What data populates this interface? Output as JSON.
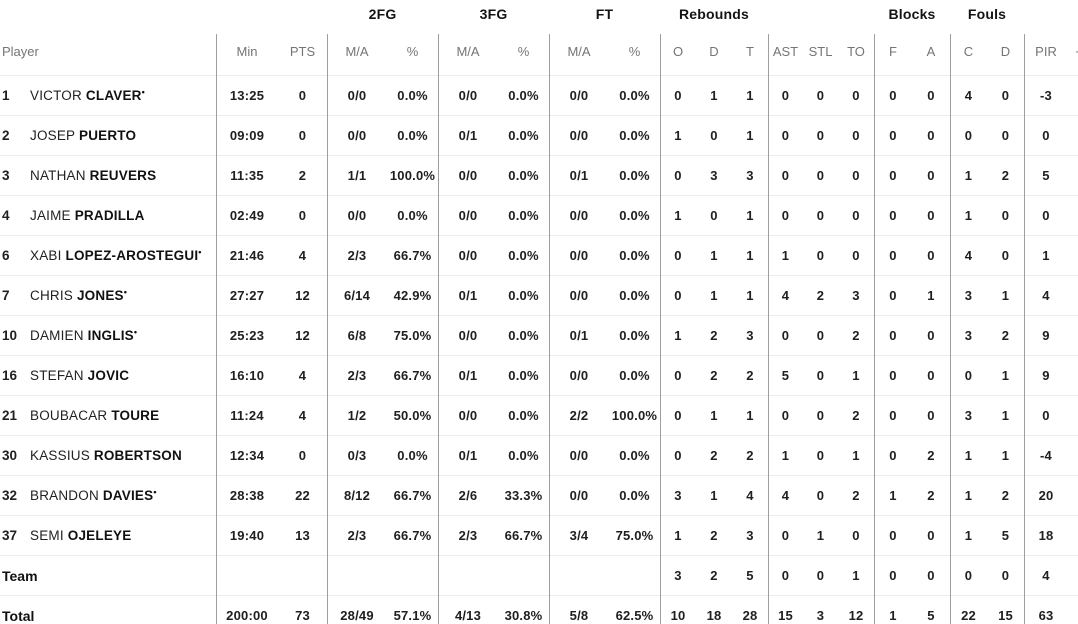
{
  "table": {
    "group_headers": [
      "2FG",
      "3FG",
      "FT",
      "Rebounds",
      "Blocks",
      "Fouls"
    ],
    "columns": [
      "Player",
      "Min",
      "PTS",
      "M/A",
      "%",
      "M/A",
      "%",
      "M/A",
      "%",
      "O",
      "D",
      "T",
      "AST",
      "STL",
      "TO",
      "F",
      "A",
      "C",
      "D",
      "PIR",
      "+/-"
    ],
    "rows": [
      {
        "num": "1",
        "first": "VICTOR",
        "last": "CLAVER",
        "starter": true,
        "cells": [
          "13:25",
          "0",
          "0/0",
          "0.0%",
          "0/0",
          "0.0%",
          "0/0",
          "0.0%",
          "0",
          "1",
          "1",
          "0",
          "0",
          "0",
          "0",
          "0",
          "4",
          "0",
          "-3",
          ""
        ]
      },
      {
        "num": "2",
        "first": "JOSEP",
        "last": "PUERTO",
        "starter": false,
        "cells": [
          "09:09",
          "0",
          "0/0",
          "0.0%",
          "0/1",
          "0.0%",
          "0/0",
          "0.0%",
          "1",
          "0",
          "1",
          "0",
          "0",
          "0",
          "0",
          "0",
          "0",
          "0",
          "0",
          ""
        ]
      },
      {
        "num": "3",
        "first": "NATHAN",
        "last": "REUVERS",
        "starter": false,
        "cells": [
          "11:35",
          "2",
          "1/1",
          "100.0%",
          "0/0",
          "0.0%",
          "0/1",
          "0.0%",
          "0",
          "3",
          "3",
          "0",
          "0",
          "0",
          "0",
          "0",
          "1",
          "2",
          "5",
          ""
        ]
      },
      {
        "num": "4",
        "first": "JAIME",
        "last": "PRADILLA",
        "starter": false,
        "cells": [
          "02:49",
          "0",
          "0/0",
          "0.0%",
          "0/0",
          "0.0%",
          "0/0",
          "0.0%",
          "1",
          "0",
          "1",
          "0",
          "0",
          "0",
          "0",
          "0",
          "1",
          "0",
          "0",
          ""
        ]
      },
      {
        "num": "6",
        "first": "XABI",
        "last": "LOPEZ-AROSTEGUI",
        "starter": true,
        "cells": [
          "21:46",
          "4",
          "2/3",
          "66.7%",
          "0/0",
          "0.0%",
          "0/0",
          "0.0%",
          "0",
          "1",
          "1",
          "1",
          "0",
          "0",
          "0",
          "0",
          "4",
          "0",
          "1",
          ""
        ]
      },
      {
        "num": "7",
        "first": "CHRIS",
        "last": "JONES",
        "starter": true,
        "cells": [
          "27:27",
          "12",
          "6/14",
          "42.9%",
          "0/1",
          "0.0%",
          "0/0",
          "0.0%",
          "0",
          "1",
          "1",
          "4",
          "2",
          "3",
          "0",
          "1",
          "3",
          "1",
          "4",
          ""
        ]
      },
      {
        "num": "10",
        "first": "DAMIEN",
        "last": "INGLIS",
        "starter": true,
        "cells": [
          "25:23",
          "12",
          "6/8",
          "75.0%",
          "0/0",
          "0.0%",
          "0/1",
          "0.0%",
          "1",
          "2",
          "3",
          "0",
          "0",
          "2",
          "0",
          "0",
          "3",
          "2",
          "9",
          ""
        ]
      },
      {
        "num": "16",
        "first": "STEFAN",
        "last": "JOVIC",
        "starter": false,
        "cells": [
          "16:10",
          "4",
          "2/3",
          "66.7%",
          "0/1",
          "0.0%",
          "0/0",
          "0.0%",
          "0",
          "2",
          "2",
          "5",
          "0",
          "1",
          "0",
          "0",
          "0",
          "1",
          "9",
          ""
        ]
      },
      {
        "num": "21",
        "first": "BOUBACAR",
        "last": "TOURE",
        "starter": false,
        "cells": [
          "11:24",
          "4",
          "1/2",
          "50.0%",
          "0/0",
          "0.0%",
          "2/2",
          "100.0%",
          "0",
          "1",
          "1",
          "0",
          "0",
          "2",
          "0",
          "0",
          "3",
          "1",
          "0",
          ""
        ]
      },
      {
        "num": "30",
        "first": "KASSIUS",
        "last": "ROBERTSON",
        "starter": false,
        "cells": [
          "12:34",
          "0",
          "0/3",
          "0.0%",
          "0/1",
          "0.0%",
          "0/0",
          "0.0%",
          "0",
          "2",
          "2",
          "1",
          "0",
          "1",
          "0",
          "2",
          "1",
          "1",
          "-4",
          ""
        ]
      },
      {
        "num": "32",
        "first": "BRANDON",
        "last": "DAVIES",
        "starter": true,
        "cells": [
          "28:38",
          "22",
          "8/12",
          "66.7%",
          "2/6",
          "33.3%",
          "0/0",
          "0.0%",
          "3",
          "1",
          "4",
          "4",
          "0",
          "2",
          "1",
          "2",
          "1",
          "2",
          "20",
          ""
        ]
      },
      {
        "num": "37",
        "first": "SEMI",
        "last": "OJELEYE",
        "starter": false,
        "cells": [
          "19:40",
          "13",
          "2/3",
          "66.7%",
          "2/3",
          "66.7%",
          "3/4",
          "75.0%",
          "1",
          "2",
          "3",
          "0",
          "1",
          "0",
          "0",
          "0",
          "1",
          "5",
          "18",
          ""
        ]
      },
      {
        "label": "Team",
        "cells": [
          "",
          "",
          "",
          "",
          "",
          "",
          "",
          "",
          "3",
          "2",
          "5",
          "0",
          "0",
          "1",
          "0",
          "0",
          "0",
          "0",
          "4",
          ""
        ]
      },
      {
        "label": "Total",
        "cells": [
          "200:00",
          "73",
          "28/49",
          "57.1%",
          "4/13",
          "30.8%",
          "5/8",
          "62.5%",
          "10",
          "18",
          "28",
          "15",
          "3",
          "12",
          "1",
          "5",
          "22",
          "15",
          "63",
          ""
        ]
      }
    ]
  }
}
